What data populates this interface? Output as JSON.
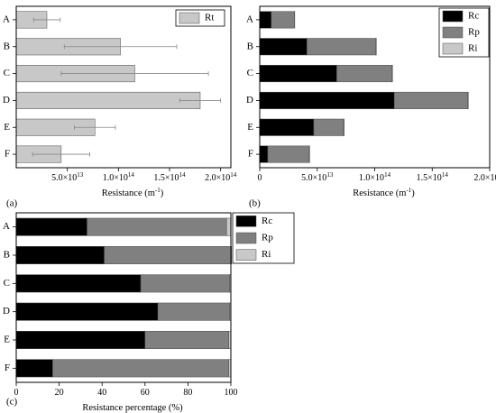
{
  "chart_data": [
    {
      "id": "a",
      "type": "bar",
      "orientation": "horizontal",
      "panel_label": "(a)",
      "xlabel": "Resistance (m",
      "xlabel_sup": "-1",
      "xlabel_end": ")",
      "categories": [
        "A",
        "B",
        "C",
        "D",
        "E",
        "F"
      ],
      "xlim": [
        0,
        210000000000000.0
      ],
      "xticks": [
        50000000000000,
        100000000000000,
        150000000000000,
        200000000000000
      ],
      "xtick_labels": [
        {
          "m": "5.0×10",
          "e": "13"
        },
        {
          "m": "1.0×10",
          "e": "14"
        },
        {
          "m": "1.5×10",
          "e": "14"
        },
        {
          "m": "2.0×10",
          "e": "14"
        }
      ],
      "series": [
        {
          "name": "Rt",
          "color": "#c8c8c8",
          "values": [
            30000000000000.0,
            102000000000000.0,
            116000000000000.0,
            180000000000000.0,
            77000000000000.0,
            44000000000000.0
          ],
          "errors": [
            13000000000000.0,
            55000000000000.0,
            72000000000000.0,
            20000000000000.0,
            20000000000000.0,
            28000000000000.0
          ]
        }
      ],
      "legend": "top-right",
      "grid": false
    },
    {
      "id": "b",
      "type": "bar",
      "orientation": "horizontal",
      "stacked": true,
      "panel_label": "(b)",
      "xlabel": "Resistance (m",
      "xlabel_sup": "-1",
      "xlabel_end": ")",
      "categories": [
        "A",
        "B",
        "C",
        "D",
        "E",
        "F"
      ],
      "xlim": [
        0,
        200000000000000.0
      ],
      "xticks": [
        0,
        50000000000000,
        100000000000000,
        150000000000000,
        200000000000000
      ],
      "xtick_labels": [
        {
          "m": "0",
          "e": ""
        },
        {
          "m": "5.0×10",
          "e": "13"
        },
        {
          "m": "1.0×10",
          "e": "14"
        },
        {
          "m": "1.5×10",
          "e": "14"
        },
        {
          "m": "2.0×10",
          "e": "14"
        }
      ],
      "series": [
        {
          "name": "Rc",
          "color": "#000000",
          "values": [
            10000000000000.0,
            41000000000000.0,
            67000000000000.0,
            117000000000000.0,
            47000000000000.0,
            7000000000000.0
          ]
        },
        {
          "name": "Rp",
          "color": "#808080",
          "values": [
            20000000000000.0,
            60000000000000.0,
            48000000000000.0,
            64000000000000.0,
            26000000000000.0,
            36000000000000.0
          ]
        },
        {
          "name": "Ri",
          "color": "#c8c8c8",
          "values": [
            500000000000.0,
            500000000000.0,
            500000000000.0,
            500000000000.0,
            500000000000.0,
            500000000000.0
          ]
        }
      ],
      "legend": "top-right",
      "grid": false
    },
    {
      "id": "c",
      "type": "bar",
      "orientation": "horizontal",
      "stacked": true,
      "panel_label": "(c)",
      "xlabel": "Resistance percentage (%)",
      "categories": [
        "A",
        "B",
        "C",
        "D",
        "E",
        "F"
      ],
      "xlim": [
        0,
        100
      ],
      "xticks": [
        0,
        20,
        40,
        60,
        80,
        100
      ],
      "xtick_labels": [
        {
          "m": "0",
          "e": ""
        },
        {
          "m": "20",
          "e": ""
        },
        {
          "m": "40",
          "e": ""
        },
        {
          "m": "60",
          "e": ""
        },
        {
          "m": "80",
          "e": ""
        },
        {
          "m": "100",
          "e": ""
        }
      ],
      "series": [
        {
          "name": "Rc",
          "color": "#000000",
          "values": [
            33,
            41,
            58,
            66,
            60,
            17
          ]
        },
        {
          "name": "Rp",
          "color": "#808080",
          "values": [
            65,
            59,
            41.5,
            33.5,
            39,
            82
          ]
        },
        {
          "name": "Ri",
          "color": "#c8c8c8",
          "values": [
            2,
            0.3,
            0.5,
            0.5,
            1,
            1
          ]
        }
      ],
      "legend": "right",
      "grid": false
    }
  ]
}
